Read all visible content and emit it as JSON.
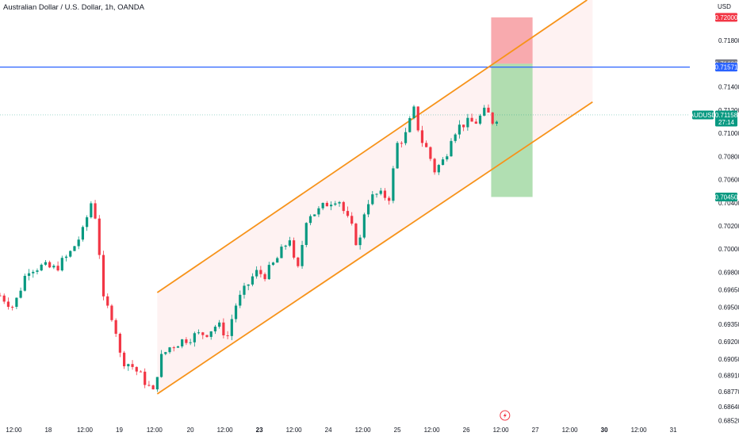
{
  "header": {
    "title": "Australian Dollar / U.S. Dollar, 1h, OANDA"
  },
  "icons": {
    "lightning": "lightning-icon"
  },
  "colors": {
    "up": "#089981",
    "down": "#f23645",
    "channel": "#f7931a",
    "channel_fill": "#fdeeee",
    "hline": "#2962ff",
    "last_price": "#089981",
    "target": "#089981",
    "stop": "#f23645",
    "tp_zone": "#a3d9a5",
    "sl_zone": "#f8a5aa"
  },
  "chart_data": {
    "type": "candlestick",
    "symbol": "AUDUSD",
    "title": "Australian Dollar / U.S. Dollar, 1h, OANDA",
    "currency_label": "USD",
    "ylim": [
      0.6851,
      0.7215
    ],
    "y_ticks": [
      "0.71800",
      "0.71400",
      "0.71200",
      "0.71000",
      "0.70800",
      "0.70600",
      "0.70400",
      "0.70200",
      "0.70000",
      "0.69800",
      "0.69650",
      "0.69500",
      "0.69350",
      "0.69200",
      "0.69050",
      "0.68910",
      "0.68770",
      "0.68640",
      "0.68520"
    ],
    "x_range": [
      0,
      100
    ],
    "x_ticks": [
      {
        "label": "12:00",
        "x": 2,
        "bold": false
      },
      {
        "label": "18",
        "x": 7,
        "bold": false
      },
      {
        "label": "12:00",
        "x": 12.3,
        "bold": false
      },
      {
        "label": "19",
        "x": 17.3,
        "bold": false
      },
      {
        "label": "12:00",
        "x": 22.4,
        "bold": false
      },
      {
        "label": "20",
        "x": 27.6,
        "bold": false
      },
      {
        "label": "12:00",
        "x": 32.6,
        "bold": false
      },
      {
        "label": "23",
        "x": 37.6,
        "bold": true
      },
      {
        "label": "12:00",
        "x": 42.6,
        "bold": false
      },
      {
        "label": "24",
        "x": 47.6,
        "bold": false
      },
      {
        "label": "12:00",
        "x": 52.6,
        "bold": false
      },
      {
        "label": "25",
        "x": 57.6,
        "bold": false
      },
      {
        "label": "12:00",
        "x": 62.6,
        "bold": false
      },
      {
        "label": "26",
        "x": 67.6,
        "bold": false
      },
      {
        "label": "12:00",
        "x": 72.6,
        "bold": false
      },
      {
        "label": "27",
        "x": 77.6,
        "bold": false
      },
      {
        "label": "12:00",
        "x": 82.6,
        "bold": false
      },
      {
        "label": "30",
        "x": 87.6,
        "bold": true
      },
      {
        "label": "12:00",
        "x": 92.6,
        "bold": false
      },
      {
        "label": "31",
        "x": 97.6,
        "bold": false
      }
    ],
    "waypoints": [
      [
        0,
        0.696
      ],
      [
        2,
        0.695
      ],
      [
        4,
        0.6983
      ],
      [
        6,
        0.6985
      ],
      [
        8,
        0.6983
      ],
      [
        10,
        0.6995
      ],
      [
        12,
        0.7015
      ],
      [
        13.2,
        0.704
      ],
      [
        14,
        0.7025
      ],
      [
        15,
        0.6955
      ],
      [
        16.5,
        0.694
      ],
      [
        17.5,
        0.6905
      ],
      [
        19,
        0.69
      ],
      [
        20.5,
        0.689
      ],
      [
        22.2,
        0.6876
      ],
      [
        23.2,
        0.6905
      ],
      [
        24.5,
        0.6915
      ],
      [
        26,
        0.692
      ],
      [
        28,
        0.6925
      ],
      [
        30,
        0.6928
      ],
      [
        31.5,
        0.6935
      ],
      [
        33,
        0.6925
      ],
      [
        34,
        0.695
      ],
      [
        35.5,
        0.6965
      ],
      [
        37,
        0.698
      ],
      [
        38.5,
        0.6978
      ],
      [
        40,
        0.699
      ],
      [
        42,
        0.701
      ],
      [
        43,
        0.6975
      ],
      [
        44.5,
        0.703
      ],
      [
        46,
        0.7032
      ],
      [
        47.5,
        0.704
      ],
      [
        49,
        0.7045
      ],
      [
        50,
        0.703
      ],
      [
        51,
        0.7018
      ],
      [
        52,
        0.7
      ],
      [
        53,
        0.704
      ],
      [
        54.5,
        0.7047
      ],
      [
        56.5,
        0.7045
      ],
      [
        57.5,
        0.709
      ],
      [
        59,
        0.71
      ],
      [
        59.9,
        0.7122
      ],
      [
        61,
        0.7095
      ],
      [
        62,
        0.7085
      ],
      [
        63,
        0.7068
      ],
      [
        64.5,
        0.7078
      ],
      [
        65.5,
        0.71
      ],
      [
        67,
        0.7108
      ],
      [
        69,
        0.711
      ],
      [
        70.5,
        0.712
      ],
      [
        71.3,
        0.711
      ],
      [
        72.2,
        0.7115
      ]
    ],
    "channel_upper": [
      [
        22.8,
        0.69625
      ],
      [
        85.1,
        0.7215
      ]
    ],
    "channel_lower": [
      [
        22.8,
        0.6875
      ],
      [
        85.9,
        0.7127
      ]
    ],
    "channel_fill_right_x": 85.9,
    "horizontal_line": 0.71571,
    "price_tags": [
      {
        "label": "0.72000",
        "value": 0.72,
        "kind": "stop"
      },
      {
        "label": "0.71600",
        "value": 0.716,
        "kind": "grey"
      },
      {
        "label": "0.71571",
        "value": 0.71571,
        "kind": "line"
      },
      {
        "label": "0.70450",
        "value": 0.7045,
        "kind": "target"
      }
    ],
    "last_price": {
      "symbol": "AUDUSD",
      "price": "0.71158",
      "countdown": "27:14",
      "value": 0.71158
    },
    "position": {
      "x_start": 71.2,
      "x_end": 77.2,
      "entry": 0.716,
      "stop": 0.72,
      "target": 0.7045
    }
  }
}
